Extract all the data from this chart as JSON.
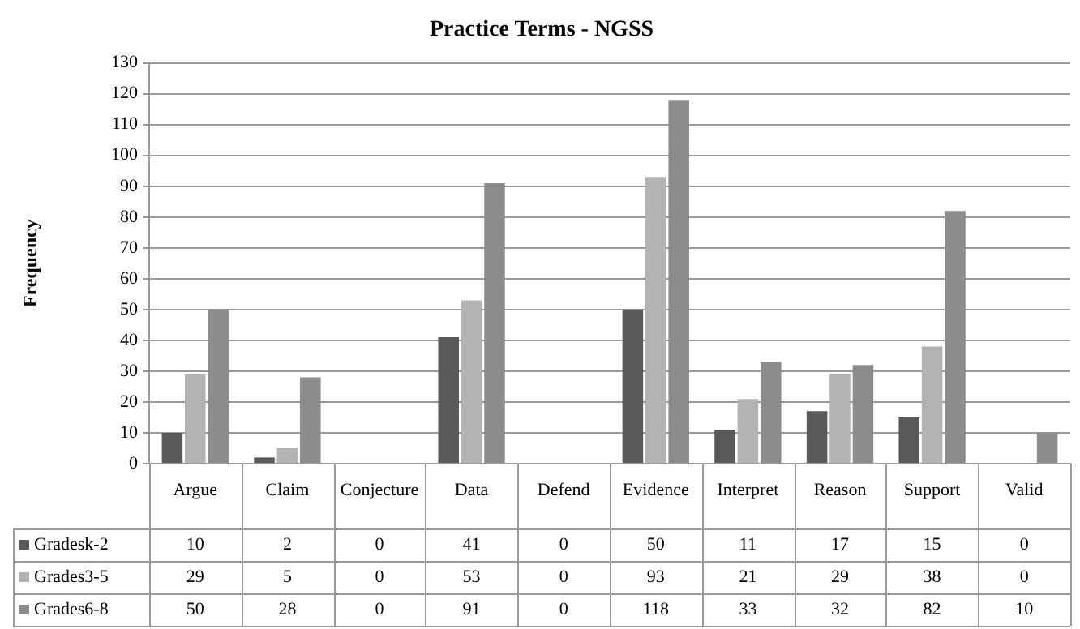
{
  "chart_data": {
    "type": "bar",
    "title": "Practice Terms - NGSS",
    "ylabel": "Frequency",
    "categories": [
      "Argue",
      "Claim",
      "Conjecture",
      "Data",
      "Defend",
      "Evidence",
      "Interpret",
      "Reason",
      "Support",
      "Valid"
    ],
    "series": [
      {
        "name": "Gradesk-2",
        "color": "#595959",
        "values": [
          10,
          2,
          0,
          41,
          0,
          50,
          11,
          17,
          15,
          0
        ]
      },
      {
        "name": "Grades3-5",
        "color": "#b3b3b3",
        "values": [
          29,
          5,
          0,
          53,
          0,
          93,
          21,
          29,
          38,
          0
        ]
      },
      {
        "name": "Grades6-8",
        "color": "#8c8c8c",
        "values": [
          50,
          28,
          0,
          91,
          0,
          118,
          33,
          32,
          82,
          10
        ]
      }
    ],
    "ylim": [
      0,
      130
    ],
    "yticks": [
      0,
      10,
      20,
      30,
      40,
      50,
      60,
      70,
      80,
      90,
      100,
      110,
      120,
      130
    ],
    "grid": "y",
    "legend": "bottom",
    "data_labels": true
  }
}
